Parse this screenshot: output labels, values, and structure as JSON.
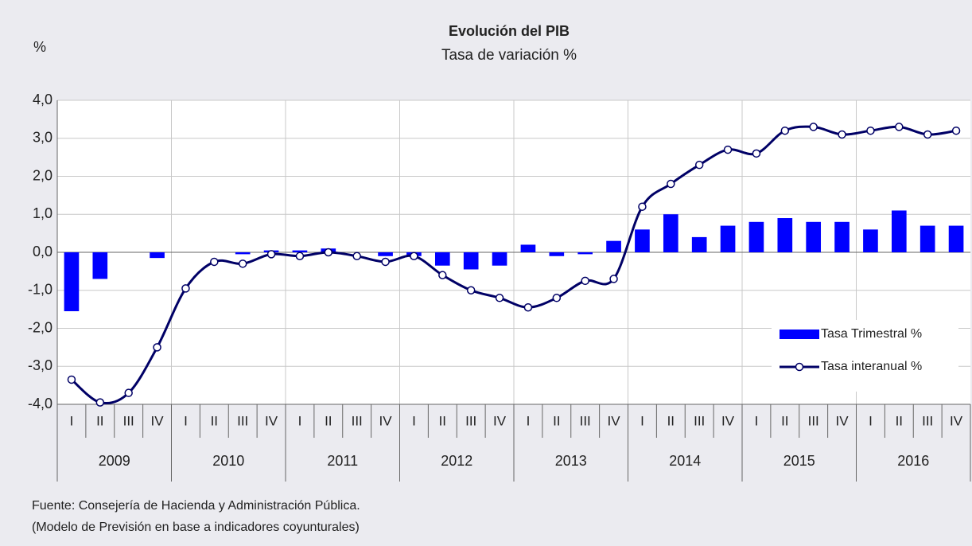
{
  "chart_data": {
    "type": "bar_line",
    "title": "Evolución del PIB",
    "subtitle": "Tasa de variación %",
    "y_label": "%",
    "categories": [
      "I",
      "II",
      "III",
      "IV",
      "I",
      "II",
      "III",
      "IV",
      "I",
      "II",
      "III",
      "IV",
      "I",
      "II",
      "III",
      "IV",
      "I",
      "II",
      "III",
      "IV",
      "I",
      "II",
      "III",
      "IV",
      "I",
      "II",
      "III",
      "IV",
      "I",
      "II",
      "III",
      "IV"
    ],
    "years": [
      "2009",
      "2010",
      "2011",
      "2012",
      "2013",
      "2014",
      "2015",
      "2016"
    ],
    "series": [
      {
        "name": "Tasa Trimestral %",
        "kind": "bar",
        "color": "#0000ff",
        "values": [
          -1.55,
          -0.7,
          0.0,
          -0.15,
          0.0,
          0.0,
          -0.05,
          0.05,
          0.05,
          0.1,
          0.0,
          -0.1,
          -0.1,
          -0.35,
          -0.45,
          -0.35,
          0.2,
          -0.1,
          -0.05,
          0.3,
          0.6,
          1.0,
          0.4,
          0.7,
          0.8,
          0.9,
          0.8,
          0.8,
          0.6,
          1.1,
          0.7,
          0.7
        ]
      },
      {
        "name": "Tasa interanual %",
        "kind": "line",
        "color": "#000066",
        "values": [
          -3.35,
          -3.95,
          -3.7,
          -2.5,
          -0.95,
          -0.25,
          -0.3,
          -0.05,
          -0.1,
          0.0,
          -0.1,
          -0.25,
          -0.1,
          -0.6,
          -1.0,
          -1.2,
          -1.45,
          -1.2,
          -0.75,
          -0.7,
          1.2,
          1.8,
          2.3,
          2.7,
          2.6,
          3.2,
          3.3,
          3.1,
          3.2,
          3.3,
          3.1,
          3.2
        ]
      }
    ],
    "ylim": [
      -4,
      4
    ],
    "yticks": [
      {
        "value": -4,
        "label": "-4,0"
      },
      {
        "value": -3,
        "label": "-3,0"
      },
      {
        "value": -2,
        "label": "-2,0"
      },
      {
        "value": -1,
        "label": "-1,0"
      },
      {
        "value": 0,
        "label": "0,0"
      },
      {
        "value": 1,
        "label": "1,0"
      },
      {
        "value": 2,
        "label": "2,0"
      },
      {
        "value": 3,
        "label": "3,0"
      },
      {
        "value": 4,
        "label": "4,0"
      }
    ],
    "grid": true,
    "legend": "lower right",
    "source": [
      "Fuente: Consejería de Hacienda y Administración Pública.",
      "(Modelo de Previsión en base a indicadores coyunturales)"
    ]
  }
}
